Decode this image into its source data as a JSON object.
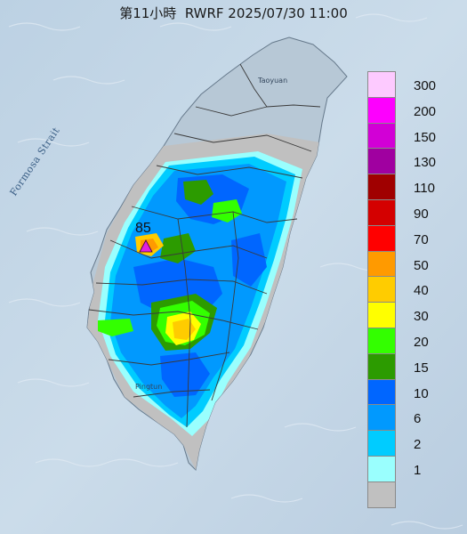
{
  "title": "第11小時  RWRF 2025/07/30 11:00",
  "strait_label": "Formosa Strait",
  "place_labels": {
    "taoyuan": "Taoyuan",
    "pingtung": "Pingtun"
  },
  "max_marker": {
    "value": "85",
    "color": "#e020e0"
  },
  "legend": [
    {
      "label": "300",
      "color": "#fdcaff"
    },
    {
      "label": "200",
      "color": "#fd00fe"
    },
    {
      "label": "150",
      "color": "#d200d6"
    },
    {
      "label": "130",
      "color": "#a000a0"
    },
    {
      "label": "110",
      "color": "#a00000"
    },
    {
      "label": "90",
      "color": "#d40000"
    },
    {
      "label": "70",
      "color": "#ff0000"
    },
    {
      "label": "50",
      "color": "#ff9a00"
    },
    {
      "label": "40",
      "color": "#ffcc00"
    },
    {
      "label": "30",
      "color": "#ffff00"
    },
    {
      "label": "20",
      "color": "#33ff00"
    },
    {
      "label": "15",
      "color": "#2c9b00"
    },
    {
      "label": "10",
      "color": "#0066ff"
    },
    {
      "label": "6",
      "color": "#0199fe"
    },
    {
      "label": "2",
      "color": "#00ccff"
    },
    {
      "label": "1",
      "color": "#9afffe"
    },
    {
      "label": "",
      "color": "#c0c0c0"
    }
  ]
}
